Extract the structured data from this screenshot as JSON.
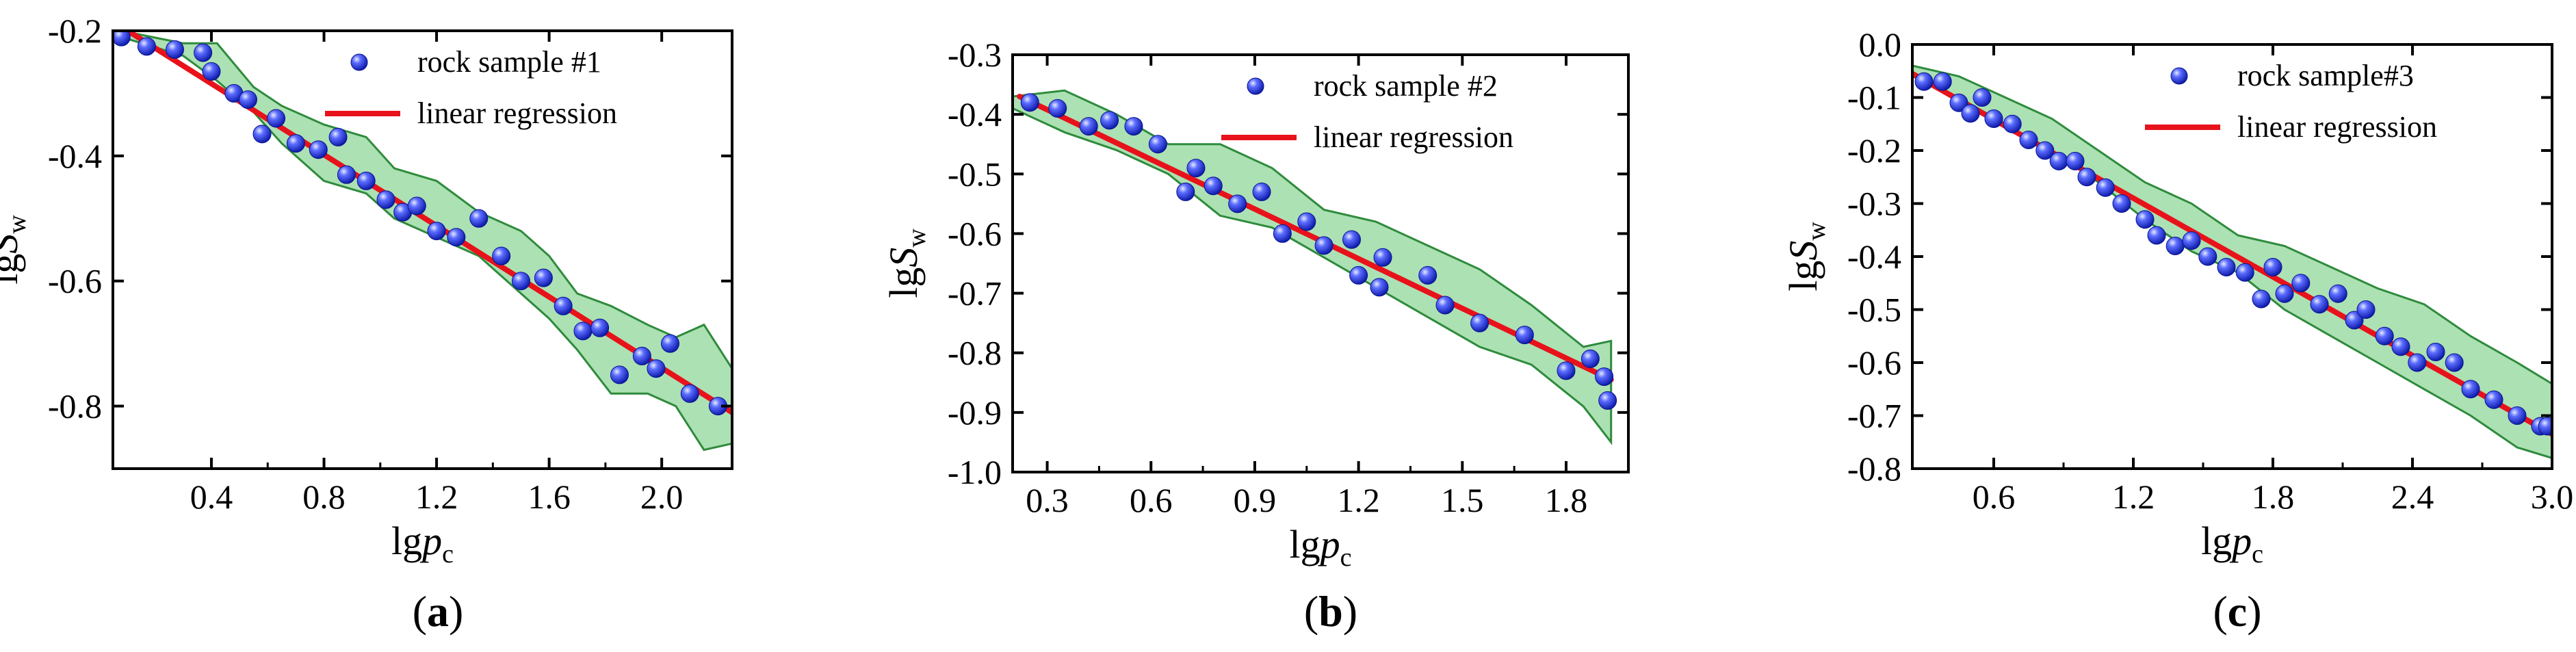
{
  "figure": {
    "captions": [
      "(a)",
      "(b)",
      "(c)"
    ]
  },
  "colors": {
    "point": "#1f2fd8",
    "point_highlight": "#9aa6ff",
    "regression": "#e8121b",
    "band_fill": "#7fd18b",
    "band_stroke": "#2e8b3c",
    "axis": "#000000"
  },
  "chart_data": [
    {
      "type": "scatter",
      "caption": "(a)",
      "xlabel": "lgp_c",
      "ylabel": "lgS_w",
      "xlim": [
        0.05,
        2.25
      ],
      "ylim": [
        -0.9,
        -0.2
      ],
      "xticks": [
        0.4,
        0.8,
        1.2,
        1.6,
        2.0
      ],
      "xtick_labels": [
        "0.4",
        "0.8",
        "1.2",
        "1.6",
        "2.0"
      ],
      "yticks": [
        -0.2,
        -0.4,
        -0.6,
        -0.8
      ],
      "ytick_labels": [
        "-0.2",
        "-0.4",
        "-0.6",
        "-0.8"
      ],
      "legend": {
        "points": "rock sample #1",
        "line": "linear regression",
        "placement": "top-right"
      },
      "series": [
        {
          "name": "rock sample #1",
          "kind": "points",
          "x": [
            0.08,
            0.17,
            0.27,
            0.37,
            0.4,
            0.48,
            0.53,
            0.58,
            0.63,
            0.7,
            0.78,
            0.85,
            0.88,
            0.95,
            1.02,
            1.08,
            1.13,
            1.2,
            1.27,
            1.35,
            1.43,
            1.5,
            1.58,
            1.65,
            1.72,
            1.78,
            1.85,
            1.93,
            1.98,
            2.03,
            2.1,
            2.2
          ],
          "y": [
            -0.21,
            -0.225,
            -0.23,
            -0.235,
            -0.265,
            -0.3,
            -0.31,
            -0.365,
            -0.34,
            -0.38,
            -0.39,
            -0.37,
            -0.43,
            -0.44,
            -0.47,
            -0.49,
            -0.48,
            -0.52,
            -0.53,
            -0.5,
            -0.56,
            -0.6,
            -0.595,
            -0.64,
            -0.68,
            -0.675,
            -0.75,
            -0.72,
            -0.74,
            -0.7,
            -0.78,
            -0.8
          ]
        },
        {
          "name": "linear regression",
          "kind": "line",
          "x": [
            0.05,
            2.25
          ],
          "y": [
            -0.185,
            -0.81
          ]
        },
        {
          "name": "uncertainty band",
          "kind": "band",
          "x": [
            0.08,
            0.3,
            0.42,
            0.55,
            0.65,
            0.8,
            0.95,
            1.05,
            1.2,
            1.35,
            1.5,
            1.6,
            1.7,
            1.82,
            1.95,
            2.05,
            2.15,
            2.25
          ],
          "upper": [
            -0.2,
            -0.22,
            -0.22,
            -0.29,
            -0.32,
            -0.35,
            -0.37,
            -0.42,
            -0.44,
            -0.49,
            -0.52,
            -0.56,
            -0.62,
            -0.64,
            -0.67,
            -0.69,
            -0.67,
            -0.74
          ],
          "lower": [
            -0.21,
            -0.24,
            -0.28,
            -0.33,
            -0.38,
            -0.44,
            -0.46,
            -0.5,
            -0.53,
            -0.56,
            -0.62,
            -0.66,
            -0.71,
            -0.78,
            -0.78,
            -0.8,
            -0.87,
            -0.86
          ]
        }
      ]
    },
    {
      "type": "scatter",
      "caption": "(b)",
      "xlabel": "lgp_c",
      "ylabel": "lgS_w",
      "xlim": [
        0.2,
        1.98
      ],
      "ylim": [
        -1.0,
        -0.3
      ],
      "xticks": [
        0.3,
        0.6,
        0.9,
        1.2,
        1.5,
        1.8
      ],
      "xtick_labels": [
        "0.3",
        "0.6",
        "0.9",
        "1.2",
        "1.5",
        "1.8"
      ],
      "yticks": [
        -0.3,
        -0.4,
        -0.5,
        -0.6,
        -0.7,
        -0.8,
        -0.9,
        -1.0
      ],
      "ytick_labels": [
        "-0.3",
        "-0.4",
        "-0.5",
        "-0.6",
        "-0.7",
        "-0.8",
        "-0.9",
        "-1.0"
      ],
      "legend": {
        "points": "rock sample #2",
        "line": "linear regression",
        "placement": "top-right"
      },
      "series": [
        {
          "name": "rock sample #2",
          "kind": "points",
          "x": [
            0.25,
            0.33,
            0.42,
            0.48,
            0.55,
            0.62,
            0.7,
            0.73,
            0.78,
            0.85,
            0.92,
            0.98,
            1.05,
            1.1,
            1.18,
            1.2,
            1.26,
            1.27,
            1.4,
            1.45,
            1.55,
            1.68,
            1.8,
            1.87,
            1.91,
            1.92
          ],
          "y": [
            -0.38,
            -0.39,
            -0.42,
            -0.41,
            -0.42,
            -0.45,
            -0.53,
            -0.49,
            -0.52,
            -0.55,
            -0.53,
            -0.6,
            -0.58,
            -0.62,
            -0.61,
            -0.67,
            -0.69,
            -0.64,
            -0.67,
            -0.72,
            -0.75,
            -0.77,
            -0.83,
            -0.81,
            -0.84,
            -0.88
          ]
        },
        {
          "name": "linear regression",
          "kind": "line",
          "x": [
            0.22,
            1.93
          ],
          "y": [
            -0.37,
            -0.845
          ]
        },
        {
          "name": "uncertainty band",
          "kind": "band",
          "x": [
            0.2,
            0.35,
            0.5,
            0.65,
            0.8,
            0.95,
            1.1,
            1.25,
            1.4,
            1.55,
            1.7,
            1.85,
            1.93
          ],
          "upper": [
            -0.37,
            -0.36,
            -0.4,
            -0.45,
            -0.45,
            -0.49,
            -0.56,
            -0.58,
            -0.62,
            -0.66,
            -0.72,
            -0.79,
            -0.78
          ],
          "lower": [
            -0.39,
            -0.43,
            -0.46,
            -0.5,
            -0.57,
            -0.59,
            -0.64,
            -0.69,
            -0.74,
            -0.79,
            -0.82,
            -0.89,
            -0.95
          ]
        }
      ]
    },
    {
      "type": "scatter",
      "caption": "(c)",
      "xlabel": "lgp_c",
      "ylabel": "lgS_w",
      "xlim": [
        0.25,
        3.0
      ],
      "ylim": [
        -0.8,
        0.0
      ],
      "xticks": [
        0.6,
        1.2,
        1.8,
        2.4,
        3.0
      ],
      "xtick_labels": [
        "0.6",
        "1.2",
        "1.8",
        "2.4",
        "3.0"
      ],
      "yticks": [
        0.0,
        -0.1,
        -0.2,
        -0.3,
        -0.4,
        -0.5,
        -0.6,
        -0.7,
        -0.8
      ],
      "ytick_labels": [
        "0.0",
        "-0.1",
        "-0.2",
        "-0.3",
        "-0.4",
        "-0.5",
        "-0.6",
        "-0.7",
        "-0.8"
      ],
      "legend": {
        "points": "rock sample#3",
        "line": "linear regression",
        "placement": "top-right"
      },
      "series": [
        {
          "name": "rock sample#3",
          "kind": "points",
          "x": [
            0.3,
            0.38,
            0.45,
            0.5,
            0.55,
            0.6,
            0.68,
            0.75,
            0.82,
            0.88,
            0.95,
            1.0,
            1.08,
            1.15,
            1.25,
            1.3,
            1.38,
            1.45,
            1.52,
            1.6,
            1.68,
            1.75,
            1.8,
            1.85,
            1.92,
            2.0,
            2.08,
            2.15,
            2.2,
            2.28,
            2.35,
            2.42,
            2.5,
            2.58,
            2.65,
            2.75,
            2.85,
            2.95,
            2.98
          ],
          "y": [
            -0.07,
            -0.07,
            -0.11,
            -0.13,
            -0.1,
            -0.14,
            -0.15,
            -0.18,
            -0.2,
            -0.22,
            -0.22,
            -0.25,
            -0.27,
            -0.3,
            -0.33,
            -0.36,
            -0.38,
            -0.37,
            -0.4,
            -0.42,
            -0.43,
            -0.48,
            -0.42,
            -0.47,
            -0.45,
            -0.49,
            -0.47,
            -0.52,
            -0.5,
            -0.55,
            -0.57,
            -0.6,
            -0.58,
            -0.6,
            -0.65,
            -0.67,
            -0.7,
            -0.72,
            -0.72
          ]
        },
        {
          "name": "linear regression",
          "kind": "line",
          "x": [
            0.25,
            3.0
          ],
          "y": [
            -0.055,
            -0.735
          ]
        },
        {
          "name": "uncertainty band",
          "kind": "band",
          "x": [
            0.25,
            0.45,
            0.65,
            0.85,
            1.05,
            1.25,
            1.45,
            1.65,
            1.85,
            2.05,
            2.25,
            2.45,
            2.65,
            2.85,
            3.0
          ],
          "upper": [
            -0.04,
            -0.06,
            -0.1,
            -0.14,
            -0.2,
            -0.26,
            -0.3,
            -0.36,
            -0.38,
            -0.42,
            -0.46,
            -0.49,
            -0.55,
            -0.6,
            -0.64
          ],
          "lower": [
            -0.06,
            -0.1,
            -0.15,
            -0.2,
            -0.26,
            -0.33,
            -0.39,
            -0.43,
            -0.5,
            -0.55,
            -0.6,
            -0.65,
            -0.7,
            -0.76,
            -0.78
          ]
        }
      ]
    }
  ]
}
